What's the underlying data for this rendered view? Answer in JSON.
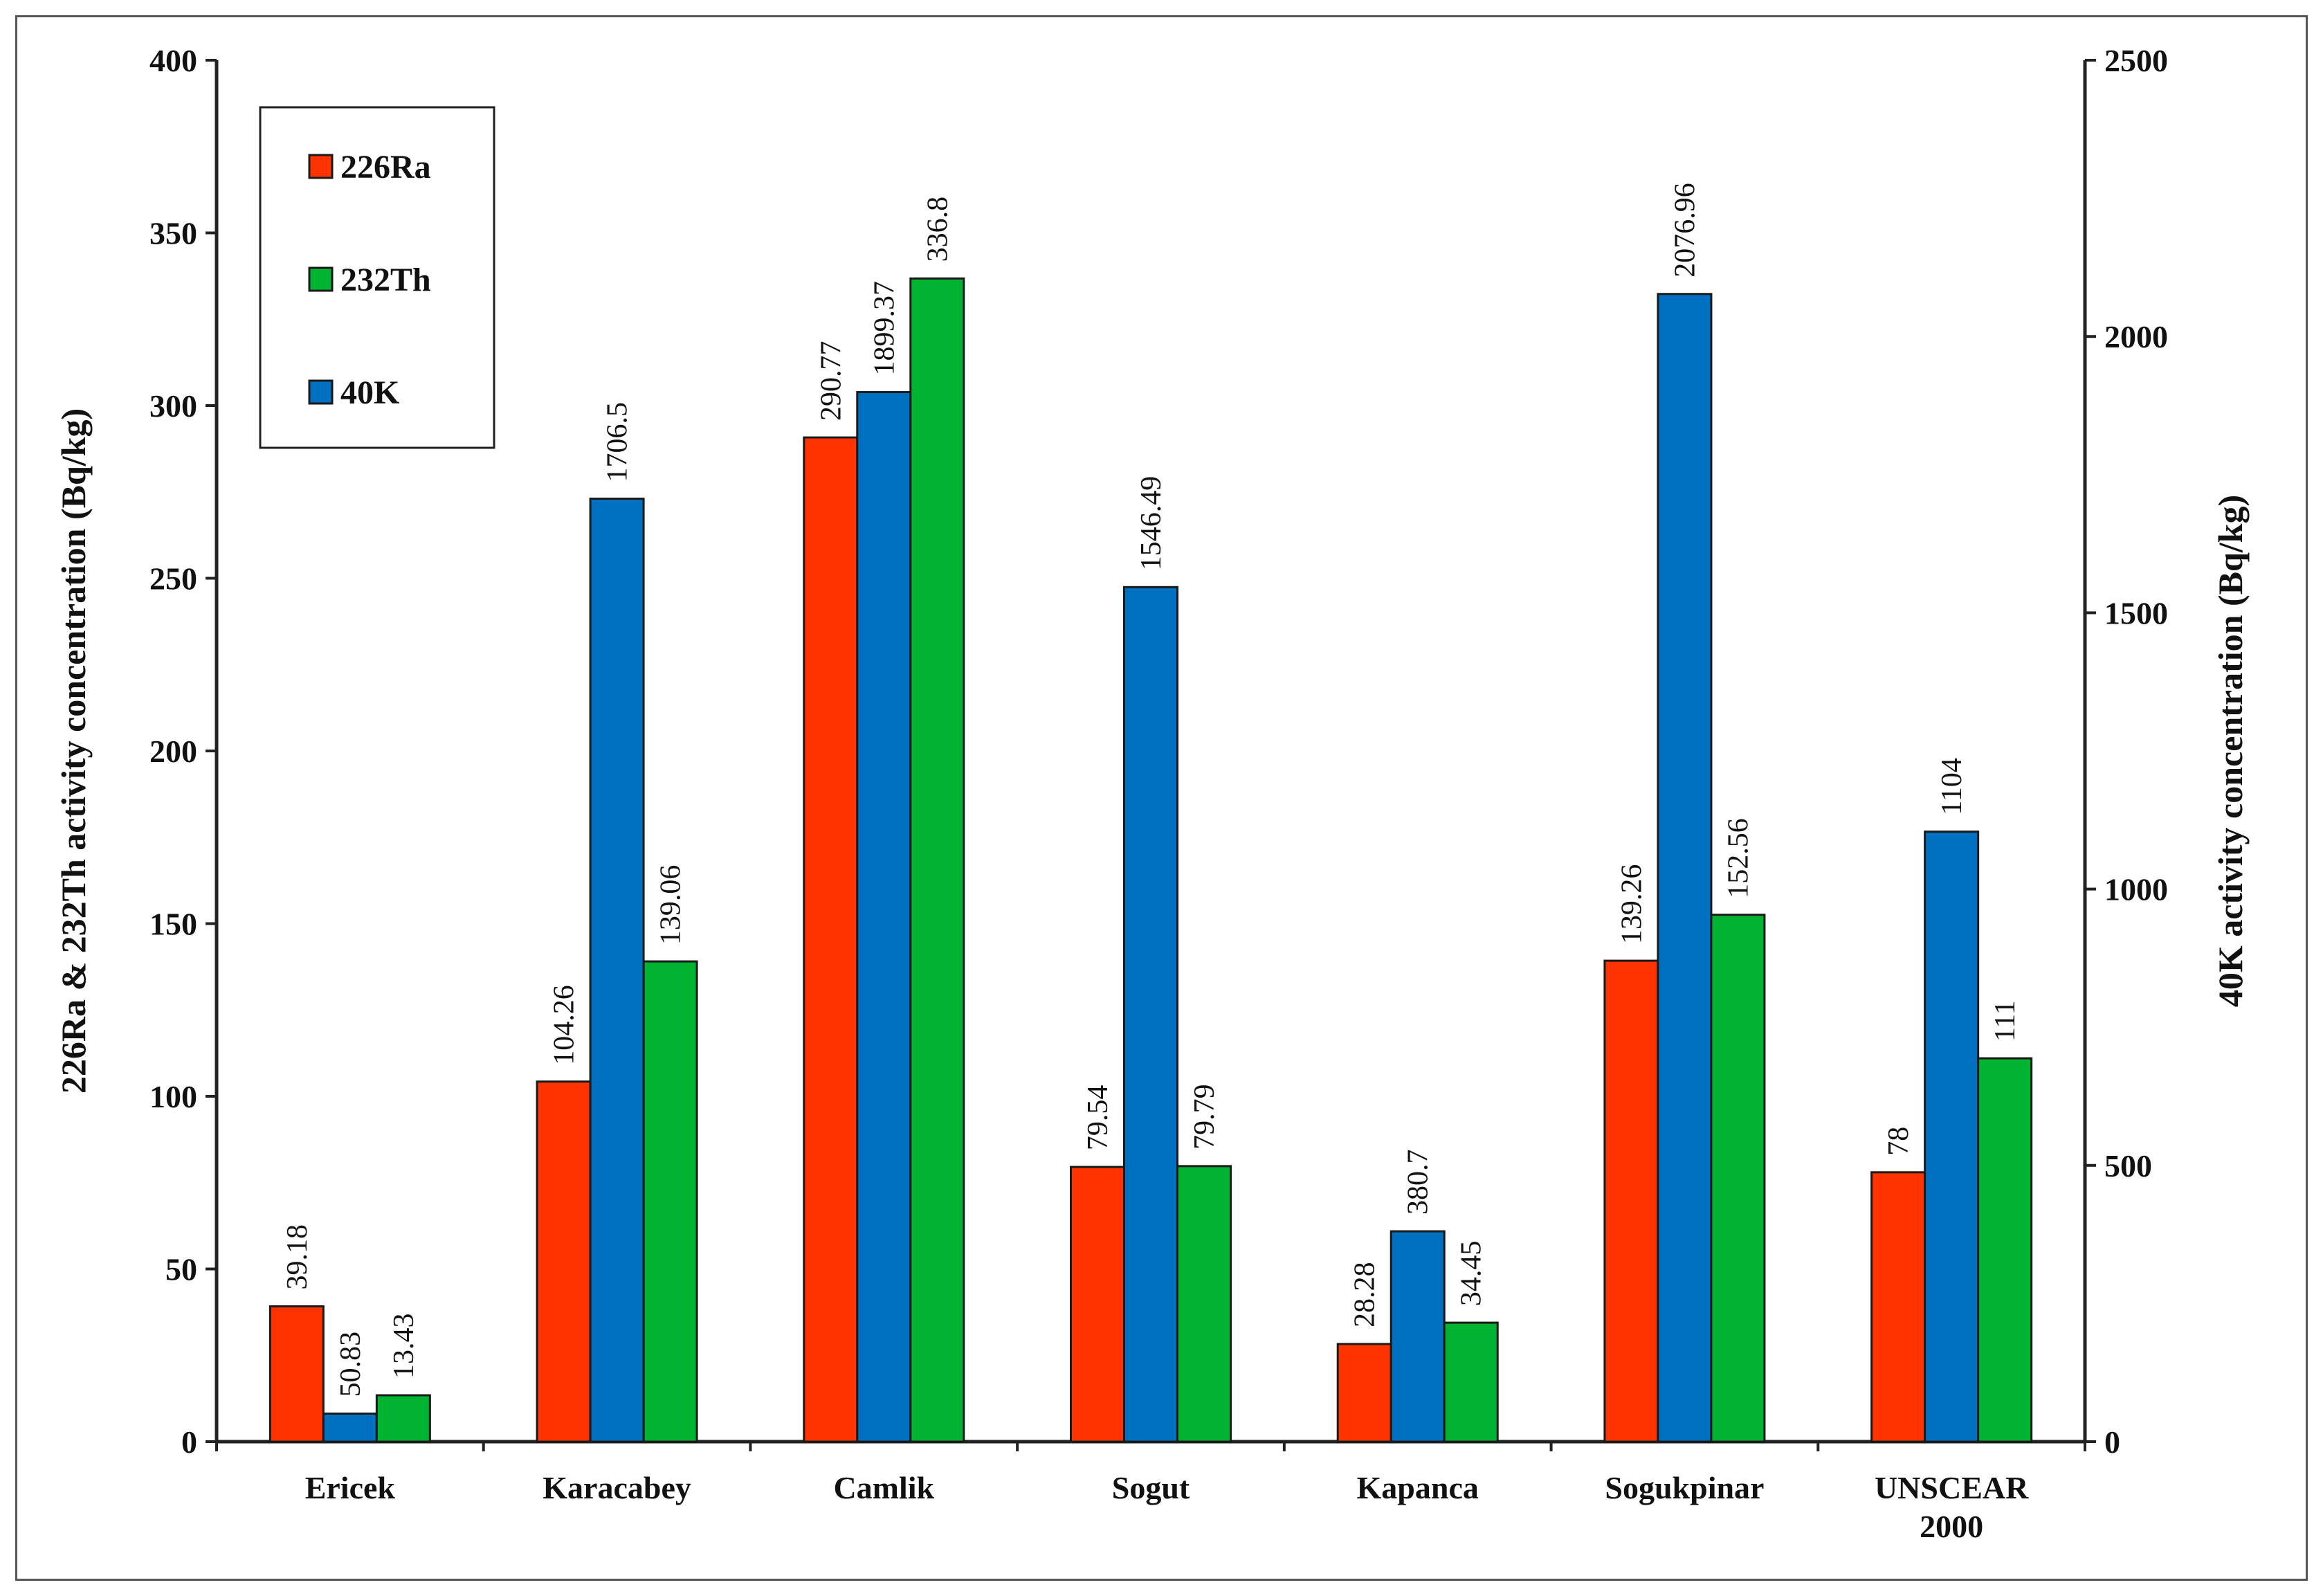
{
  "chart_data": {
    "type": "bar",
    "categories": [
      [
        "Ericek"
      ],
      [
        "Karacabey"
      ],
      [
        "Camlik"
      ],
      [
        "Sogut"
      ],
      [
        "Kapanca"
      ],
      [
        "Sogukpinar"
      ],
      [
        "UNSCEAR",
        "2000"
      ]
    ],
    "series": [
      {
        "name": "226Ra",
        "axis": "left",
        "color": "#ff3300",
        "values": [
          39.18,
          104.26,
          290.77,
          79.54,
          28.28,
          139.26,
          78
        ],
        "labels": [
          "39.18",
          "104.26",
          "290.77",
          "79.54",
          "28.28",
          "139.26",
          "78"
        ]
      },
      {
        "name": "40K",
        "axis": "right",
        "color": "#0070c0",
        "values": [
          50.83,
          1706.5,
          1899.37,
          1546.49,
          380.7,
          2076.96,
          1104
        ],
        "labels": [
          "50.83",
          "1706.5",
          "1899.37",
          "1546.49",
          "380.7",
          "2076.96",
          "1104"
        ]
      },
      {
        "name": "232Th",
        "axis": "left",
        "color": "#00b432",
        "values": [
          13.43,
          139.06,
          336.8,
          79.79,
          34.45,
          152.56,
          111
        ],
        "labels": [
          "13.43",
          "139.06",
          "336.8",
          "79.79",
          "34.45",
          "152.56",
          "111"
        ]
      }
    ],
    "legend": [
      {
        "name": "226Ra",
        "color": "#ff3300"
      },
      {
        "name": "232Th",
        "color": "#00b432"
      },
      {
        "name": "40K",
        "color": "#0070c0"
      }
    ],
    "legend_position": "top-left",
    "ylabel_left": "226Ra & 232Th activity concentration (Bq/kg)",
    "ylabel_right": "40K activity concentration (Bq/kg)",
    "ylim_left": [
      0,
      400
    ],
    "ylim_right": [
      0,
      2500
    ],
    "yticks_left": [
      0,
      50,
      100,
      150,
      200,
      250,
      300,
      350,
      400
    ],
    "yticks_right": [
      0,
      500,
      1000,
      1500,
      2000,
      2500
    ],
    "grid": false
  }
}
